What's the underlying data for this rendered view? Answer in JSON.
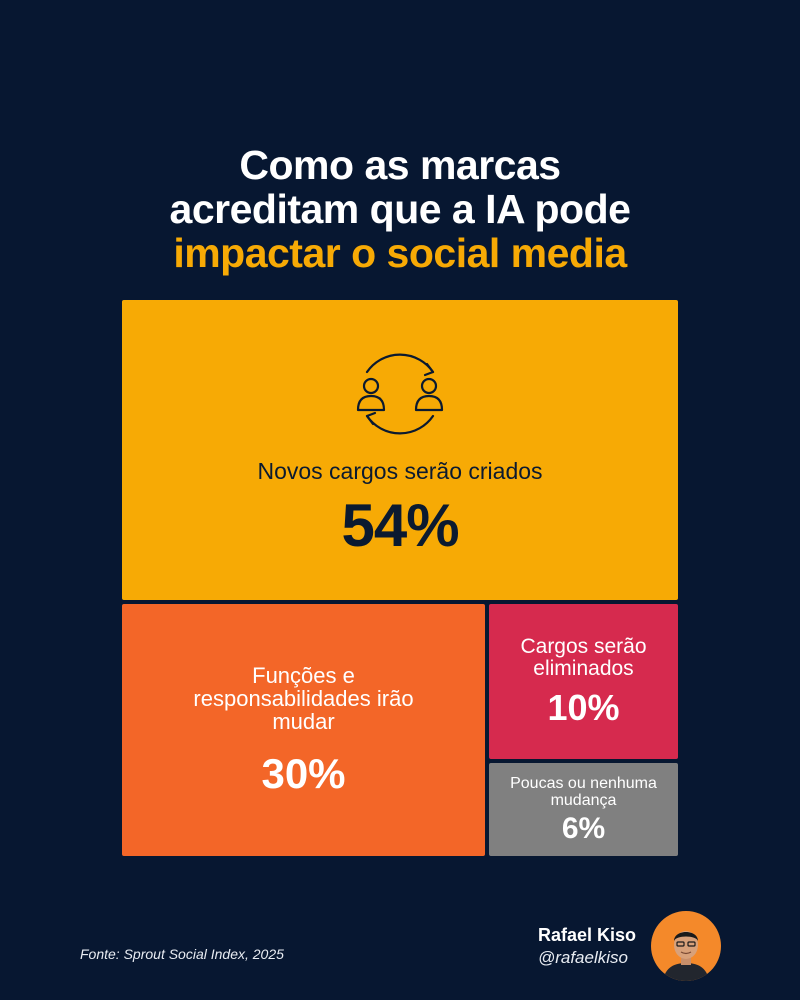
{
  "header": {
    "title_line1": "Como as marcas",
    "title_line2": "acreditam que a IA pode",
    "title_line3": "impactar o social media"
  },
  "chart_data": {
    "type": "treemap",
    "items": [
      {
        "label": "Novos cargos serão criados",
        "value": 54,
        "display": "54%",
        "color": "#f7aa05",
        "icon": "people-exchange-icon"
      },
      {
        "label": "Funções e responsabilidades irão mudar",
        "value": 30,
        "display": "30%",
        "color": "#f36628"
      },
      {
        "label": "Cargos serão eliminados",
        "value": 10,
        "display": "10%",
        "color": "#d62a4e"
      },
      {
        "label": "Poucas ou nenhuma mudança",
        "value": 6,
        "display": "6%",
        "color": "#808080"
      }
    ]
  },
  "footer": {
    "source": "Fonte: Sprout Social Index, 2025",
    "author_name": "Rafael Kiso",
    "author_handle": "@rafaelkiso"
  },
  "colors": {
    "background": "#071731",
    "accent": "#f7aa05"
  }
}
